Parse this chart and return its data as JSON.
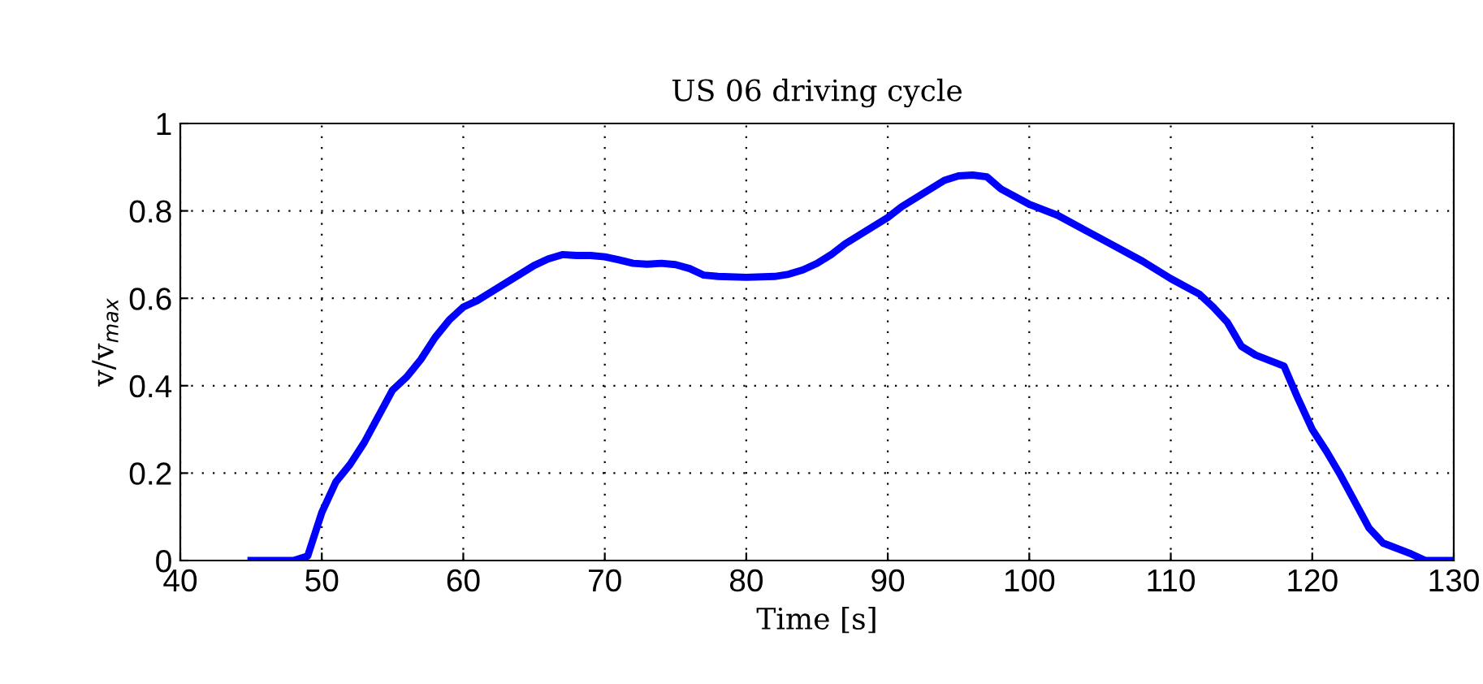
{
  "chart_data": {
    "type": "line",
    "title": "US 06 driving cycle",
    "xlabel": "Time [s]",
    "ylabel": "v/v$_{max}$",
    "x": [
      45,
      48,
      49,
      50,
      51,
      52,
      53,
      54,
      55,
      56,
      57,
      58,
      59,
      60,
      61,
      62,
      63,
      64,
      65,
      66,
      67,
      68,
      69,
      70,
      71,
      72,
      73,
      74,
      75,
      76,
      77,
      78,
      80,
      82,
      83,
      84,
      85,
      86,
      87,
      88,
      90,
      91,
      92,
      93,
      94,
      95,
      96,
      97,
      98,
      100,
      102,
      104,
      106,
      108,
      110,
      112,
      113,
      114,
      115,
      116,
      118,
      119,
      120,
      121,
      122,
      123,
      124,
      125,
      127,
      128,
      130
    ],
    "series": [
      {
        "color": "#0000ff",
        "values": [
          0,
          0,
          0.01,
          0.11,
          0.18,
          0.22,
          0.27,
          0.33,
          0.39,
          0.42,
          0.46,
          0.51,
          0.55,
          0.58,
          0.595,
          0.615,
          0.635,
          0.655,
          0.675,
          0.69,
          0.7,
          0.698,
          0.698,
          0.695,
          0.688,
          0.68,
          0.678,
          0.68,
          0.677,
          0.668,
          0.653,
          0.65,
          0.648,
          0.65,
          0.655,
          0.665,
          0.68,
          0.7,
          0.725,
          0.745,
          0.785,
          0.81,
          0.83,
          0.85,
          0.87,
          0.88,
          0.882,
          0.878,
          0.85,
          0.815,
          0.79,
          0.755,
          0.72,
          0.685,
          0.645,
          0.61,
          0.58,
          0.545,
          0.49,
          0.47,
          0.445,
          0.37,
          0.3,
          0.25,
          0.195,
          0.135,
          0.075,
          0.04,
          0.015,
          0,
          0
        ]
      }
    ],
    "xlim": [
      40,
      130
    ],
    "ylim": [
      0,
      1
    ],
    "xticks": [
      40,
      50,
      60,
      70,
      80,
      90,
      100,
      110,
      120,
      130
    ],
    "yticks": [
      0,
      0.2,
      0.4,
      0.6,
      0.8,
      1
    ],
    "grid": true,
    "line_style": "solid",
    "marker": "none"
  }
}
